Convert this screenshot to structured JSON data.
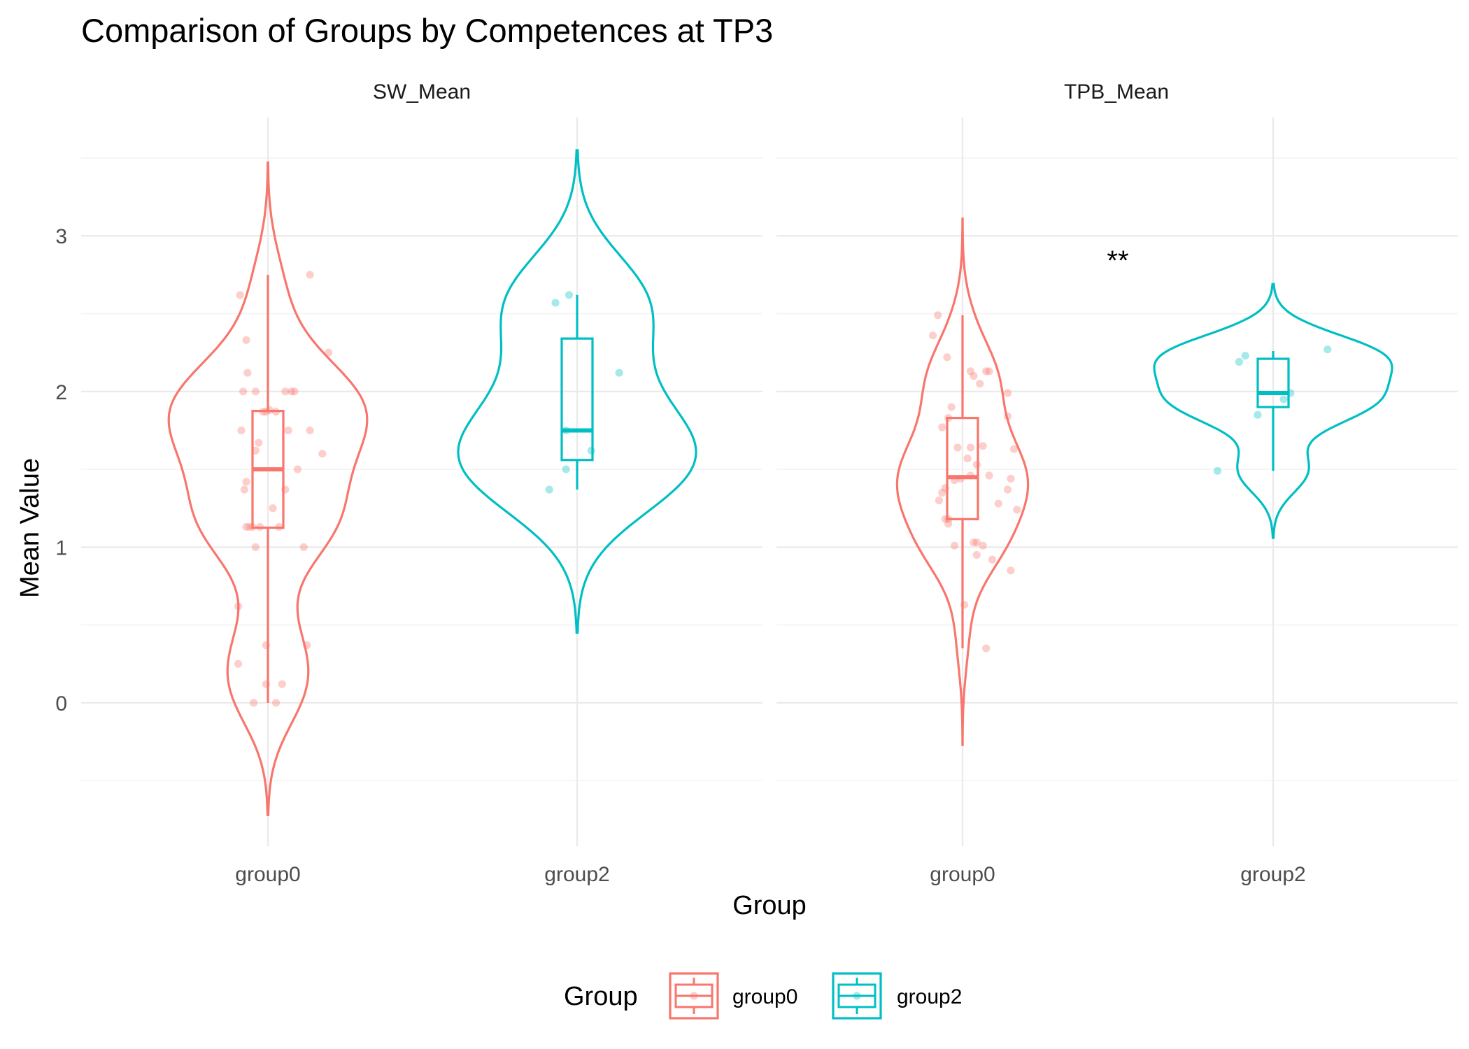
{
  "chart_data": {
    "type": "violin",
    "title": "Comparison of Groups by Competences at TP3",
    "xlabel": "Group",
    "ylabel": "Mean Value",
    "ylim": [
      -0.9,
      3.65
    ],
    "yticks": [
      0,
      1,
      2,
      3
    ],
    "categories": [
      "group0",
      "group2"
    ],
    "colors": {
      "group0": "#F8766D",
      "group2": "#00BFC4"
    },
    "legend": {
      "title": "Group",
      "position": "bottom",
      "entries": [
        "group0",
        "group2"
      ]
    },
    "grid": true,
    "panels": [
      {
        "name": "SW_Mean",
        "annotation": "",
        "groups": [
          {
            "name": "group0",
            "violin_range": [
              -0.72,
              3.47
            ],
            "box": {
              "q1": 1.125,
              "median": 1.5,
              "q3": 1.875,
              "whisker_low": 0.0,
              "whisker_high": 2.75
            },
            "points": [
              [
                -0.09,
                2.62
              ],
              [
                -0.07,
                2.33
              ],
              [
                -0.066,
                2.12
              ],
              [
                -0.08,
                2.0
              ],
              [
                -0.04,
                2.0
              ],
              [
                -0.086,
                1.75
              ],
              [
                -0.03,
                1.67
              ],
              [
                -0.016,
                1.87
              ],
              [
                -0.006,
                1.87
              ],
              [
                0.006,
                1.88
              ],
              [
                0.026,
                1.87
              ],
              [
                0.056,
                2.0
              ],
              [
                0.076,
                2.0
              ],
              [
                0.086,
                2.0
              ],
              [
                0.066,
                1.75
              ],
              [
                0.136,
                1.75
              ],
              [
                0.096,
                1.5
              ],
              [
                0.196,
                2.25
              ],
              [
                0.136,
                2.75
              ],
              [
                0.176,
                1.6
              ],
              [
                -0.04,
                1.0
              ],
              [
                -0.076,
                1.37
              ],
              [
                -0.07,
                1.13
              ],
              [
                -0.05,
                1.13
              ],
              [
                -0.06,
                1.13
              ],
              [
                -0.026,
                1.13
              ],
              [
                0.016,
                1.25
              ],
              [
                0.036,
                1.13
              ],
              [
                0.056,
                1.37
              ],
              [
                0.116,
                1.0
              ],
              [
                -0.096,
                0.62
              ],
              [
                -0.096,
                0.25
              ],
              [
                -0.046,
                0.0
              ],
              [
                -0.006,
                0.12
              ],
              [
                -0.006,
                0.37
              ],
              [
                0.026,
                0.0
              ],
              [
                0.046,
                0.12
              ],
              [
                0.126,
                0.37
              ],
              [
                -0.04,
                1.62
              ],
              [
                -0.07,
                1.42
              ]
            ]
          },
          {
            "name": "group2",
            "violin_range": [
              0.45,
              3.55
            ],
            "box": {
              "q1": 1.56,
              "median": 1.75,
              "q3": 2.34,
              "whisker_low": 1.37,
              "whisker_high": 2.62
            },
            "points": [
              [
                -0.07,
                2.57
              ],
              [
                -0.036,
                1.75
              ],
              [
                -0.09,
                1.37
              ],
              [
                -0.036,
                1.5
              ],
              [
                -0.026,
                2.62
              ],
              [
                0.046,
                1.62
              ],
              [
                0.136,
                2.12
              ]
            ]
          }
        ]
      },
      {
        "name": "TPB_Mean",
        "annotation": "**",
        "groups": [
          {
            "name": "group0",
            "violin_range": [
              -0.27,
              3.11
            ],
            "box": {
              "q1": 1.18,
              "median": 1.45,
              "q3": 1.83,
              "whisker_low": 0.35,
              "whisker_high": 2.49
            },
            "points": [
              [
                -0.08,
                2.49
              ],
              [
                -0.096,
                2.36
              ],
              [
                -0.05,
                2.22
              ],
              [
                -0.036,
                1.9
              ],
              [
                -0.046,
                1.83
              ],
              [
                -0.066,
                1.77
              ],
              [
                -0.016,
                1.64
              ],
              [
                0.026,
                1.64
              ],
              [
                0.016,
                1.57
              ],
              [
                0.026,
                2.13
              ],
              [
                0.036,
                2.1
              ],
              [
                0.056,
                2.05
              ],
              [
                0.076,
                2.13
              ],
              [
                0.086,
                2.13
              ],
              [
                0.146,
                1.99
              ],
              [
                0.146,
                1.84
              ],
              [
                0.166,
                1.63
              ],
              [
                0.156,
                1.44
              ],
              [
                0.146,
                1.37
              ],
              [
                0.116,
                1.28
              ],
              [
                0.176,
                1.24
              ],
              [
                0.086,
                1.46
              ],
              [
                0.046,
                1.53
              ],
              [
                0.066,
                1.65
              ],
              [
                0.026,
                1.46
              ],
              [
                -0.006,
                1.44
              ],
              [
                -0.026,
                1.43
              ],
              [
                -0.056,
                1.38
              ],
              [
                -0.066,
                1.35
              ],
              [
                -0.076,
                1.3
              ],
              [
                -0.056,
                1.18
              ],
              [
                -0.046,
                1.18
              ],
              [
                -0.046,
                1.15
              ],
              [
                -0.026,
                1.01
              ],
              [
                0.036,
                1.03
              ],
              [
                0.046,
                1.03
              ],
              [
                0.046,
                0.95
              ],
              [
                0.066,
                1.01
              ],
              [
                0.096,
                0.92
              ],
              [
                0.156,
                0.85
              ],
              [
                0.006,
                0.63
              ],
              [
                0.076,
                0.35
              ]
            ]
          },
          {
            "name": "group2",
            "violin_range": [
              1.06,
              2.69
            ],
            "box": {
              "q1": 1.9,
              "median": 1.99,
              "q3": 2.21,
              "whisker_low": 1.49,
              "whisker_high": 2.26
            },
            "points": [
              [
                -0.18,
                1.49
              ],
              [
                -0.11,
                2.19
              ],
              [
                -0.09,
                2.23
              ],
              [
                -0.05,
                1.85
              ],
              [
                0.034,
                1.95
              ],
              [
                0.056,
                1.99
              ],
              [
                0.176,
                2.27
              ]
            ]
          }
        ]
      }
    ]
  }
}
